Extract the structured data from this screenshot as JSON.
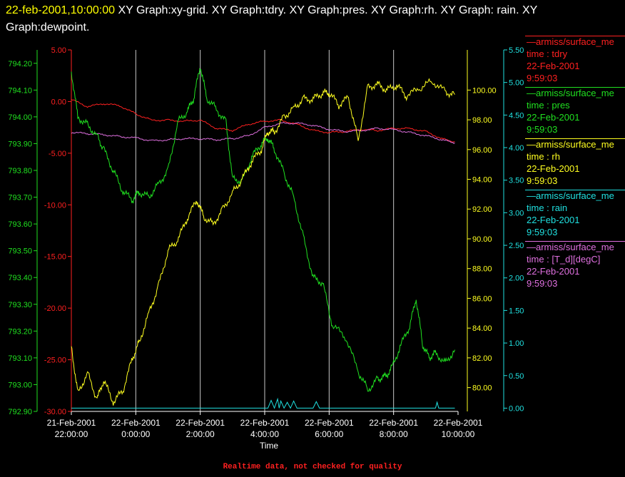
{
  "header": {
    "timestamp": "22-feb-2001,10:00:00",
    "graphs": " XY Graph:xy-grid.  XY Graph:tdry.  XY Graph:pres.  XY Graph:rh.  XY Graph: rain.  XY Graph:dewpoint."
  },
  "footer": "Realtime data, not checked for quality",
  "legend": [
    {
      "source": "—armiss/surface_me",
      "var": "time : tdry",
      "date": "22-Feb-2001",
      "time": "9:59:03",
      "color": "#ff2020"
    },
    {
      "source": "—armiss/surface_me",
      "var": "time : pres",
      "date": "22-Feb-2001",
      "time": "9:59:03",
      "color": "#20e020"
    },
    {
      "source": "—armiss/surface_me",
      "var": "time : rh",
      "date": "22-Feb-2001",
      "time": "9:59:03",
      "color": "#ffff20"
    },
    {
      "source": "—armiss/surface_me",
      "var": "time : rain",
      "date": "22-Feb-2001",
      "time": "9:59:03",
      "color": "#20e0e0"
    },
    {
      "source": "—armiss/surface_me",
      "var": "time : [T_d][degC]",
      "date": "22-Feb-2001",
      "time": "9:59:03",
      "color": "#e070e0"
    }
  ],
  "chart_data": {
    "type": "line",
    "xlabel": "Time",
    "x_ticks": [
      {
        "value": 22.0,
        "date": "21-Feb-2001",
        "time": "22:00:00"
      },
      {
        "value": 24.0,
        "date": "22-Feb-2001",
        "time": "0:00:00"
      },
      {
        "value": 26.0,
        "date": "22-Feb-2001",
        "time": "2:00:00"
      },
      {
        "value": 28.0,
        "date": "22-Feb-2001",
        "time": "4:00:00"
      },
      {
        "value": 30.0,
        "date": "22-Feb-2001",
        "time": "6:00:00"
      },
      {
        "value": 32.0,
        "date": "22-Feb-2001",
        "time": "8:00:00"
      },
      {
        "value": 34.0,
        "date": "22-Feb-2001",
        "time": "10:00:00"
      }
    ],
    "x_range": [
      22.0,
      34.0
    ],
    "grid": "vertical",
    "axes": [
      {
        "id": "tdry",
        "color": "#ff2020",
        "range": [
          -30,
          5
        ],
        "ticks": [
          "5.00",
          "0.00",
          "-5.00",
          "-10.00",
          "-15.00",
          "-20.00",
          "-25.00",
          "-30.00"
        ]
      },
      {
        "id": "pres",
        "color": "#20e020",
        "range": [
          792.9,
          794.25
        ],
        "ticks": [
          "794.20",
          "794.10",
          "794.00",
          "793.90",
          "793.80",
          "793.70",
          "793.60",
          "793.50",
          "793.40",
          "793.30",
          "793.20",
          "793.10",
          "793.00",
          "792.90"
        ]
      },
      {
        "id": "rh",
        "color": "#ffff20",
        "range": [
          78.4,
          102.7
        ],
        "ticks": [
          "100.00",
          "98.00",
          "96.00",
          "94.00",
          "92.00",
          "90.00",
          "88.00",
          "86.00",
          "84.00",
          "82.00",
          "80.00"
        ]
      },
      {
        "id": "rain",
        "color": "#20e0e0",
        "range": [
          -0.05,
          5.5
        ],
        "ticks": [
          "5.50",
          "5.00",
          "4.50",
          "4.00",
          "3.50",
          "3.00",
          "2.50",
          "2.00",
          "1.50",
          "1.00",
          "0.50",
          "0.00"
        ]
      }
    ],
    "series": [
      {
        "axis": "tdry",
        "color": "#ff2020",
        "t": [
          22.0,
          22.5,
          23.0,
          23.5,
          24.0,
          24.5,
          25.0,
          25.5,
          26.0,
          26.5,
          27.0,
          27.5,
          28.0,
          28.5,
          29.0,
          29.5,
          30.0,
          30.5,
          31.0,
          31.5,
          32.0,
          32.5,
          33.0,
          33.5,
          33.9
        ],
        "v": [
          0.2,
          -0.5,
          -0.2,
          -0.4,
          -1.2,
          -1.8,
          -1.8,
          -1.9,
          -1.8,
          -2.6,
          -2.8,
          -2.2,
          -1.9,
          -1.8,
          -2.2,
          -2.8,
          -3.0,
          -2.9,
          -2.7,
          -2.8,
          -2.6,
          -2.6,
          -2.9,
          -3.6,
          -3.9
        ]
      },
      {
        "axis": "tdry",
        "color": "#e070e0",
        "t": [
          22.0,
          22.5,
          23.0,
          23.5,
          24.0,
          24.5,
          25.0,
          25.5,
          26.0,
          26.5,
          27.0,
          27.5,
          28.0,
          28.5,
          29.0,
          29.5,
          30.0,
          30.5,
          31.0,
          31.5,
          32.0,
          32.5,
          33.0,
          33.5,
          33.9
        ],
        "v": [
          -3.0,
          -3.1,
          -3.2,
          -3.4,
          -3.5,
          -3.8,
          -3.7,
          -3.6,
          -3.6,
          -3.7,
          -3.6,
          -3.3,
          -2.5,
          -2.1,
          -2.1,
          -2.3,
          -2.7,
          -2.9,
          -2.8,
          -2.6,
          -2.7,
          -3.0,
          -3.3,
          -3.7,
          -4.0
        ]
      },
      {
        "axis": "pres",
        "color": "#20e020",
        "t": [
          22.0,
          22.2,
          22.5,
          22.8,
          23.0,
          23.3,
          23.6,
          23.9,
          24.1,
          24.4,
          24.7,
          25.0,
          25.3,
          25.6,
          25.8,
          26.0,
          26.2,
          26.5,
          26.8,
          27.0,
          27.3,
          27.6,
          27.9,
          28.1,
          28.3,
          28.6,
          28.9,
          29.2,
          29.5,
          29.8,
          30.1,
          30.5,
          30.9,
          31.2,
          31.5,
          31.7,
          31.9,
          32.2,
          32.5,
          32.7,
          32.9,
          33.1,
          33.3,
          33.6,
          33.9
        ],
        "v": [
          794.17,
          794.0,
          793.97,
          793.93,
          793.88,
          793.8,
          793.72,
          793.69,
          793.72,
          793.7,
          793.75,
          793.8,
          793.98,
          794.02,
          794.07,
          794.19,
          794.07,
          794.03,
          793.98,
          793.77,
          793.76,
          793.85,
          793.9,
          793.92,
          793.88,
          793.79,
          793.7,
          793.55,
          793.4,
          793.38,
          793.22,
          793.18,
          793.05,
          792.98,
          793.02,
          793.03,
          793.05,
          793.14,
          793.22,
          793.32,
          793.15,
          793.1,
          793.12,
          793.08,
          793.13
        ]
      },
      {
        "axis": "rh",
        "color": "#ffff20",
        "t": [
          22.0,
          22.2,
          22.5,
          22.8,
          23.0,
          23.3,
          23.6,
          23.9,
          24.1,
          24.4,
          24.7,
          25.0,
          25.3,
          25.6,
          25.9,
          26.1,
          26.4,
          26.7,
          27.0,
          27.3,
          27.6,
          27.9,
          28.1,
          28.3,
          28.6,
          28.9,
          29.2,
          29.5,
          29.8,
          30.0,
          30.3,
          30.6,
          30.9,
          31.2,
          31.5,
          31.8,
          32.1,
          32.4,
          32.8,
          33.2,
          33.6,
          33.9
        ],
        "v": [
          82.8,
          79.6,
          81.0,
          79.2,
          80.5,
          79.0,
          79.8,
          82.0,
          83.0,
          85.0,
          86.8,
          89.2,
          89.9,
          91.4,
          92.6,
          91.5,
          91.0,
          92.0,
          93.1,
          94.0,
          95.2,
          96.0,
          97.2,
          97.2,
          98.2,
          98.8,
          99.4,
          99.4,
          99.8,
          99.8,
          99.0,
          99.5,
          96.6,
          100.2,
          100.4,
          100.0,
          100.3,
          99.6,
          100.1,
          100.6,
          99.9,
          99.7
        ]
      },
      {
        "axis": "rain",
        "color": "#20e0e0",
        "t": [
          22.0,
          28.1,
          28.2,
          28.3,
          28.4,
          28.45,
          28.5,
          28.6,
          28.7,
          28.8,
          28.9,
          29.0,
          29.5,
          29.6,
          29.7,
          30.0,
          33.3,
          33.35,
          33.4,
          33.9
        ],
        "v": [
          0,
          0,
          0.12,
          0,
          0.14,
          0,
          0.11,
          0,
          0.09,
          0,
          0.11,
          0,
          0,
          0.1,
          0,
          0,
          0,
          0.09,
          0,
          0
        ]
      }
    ]
  }
}
